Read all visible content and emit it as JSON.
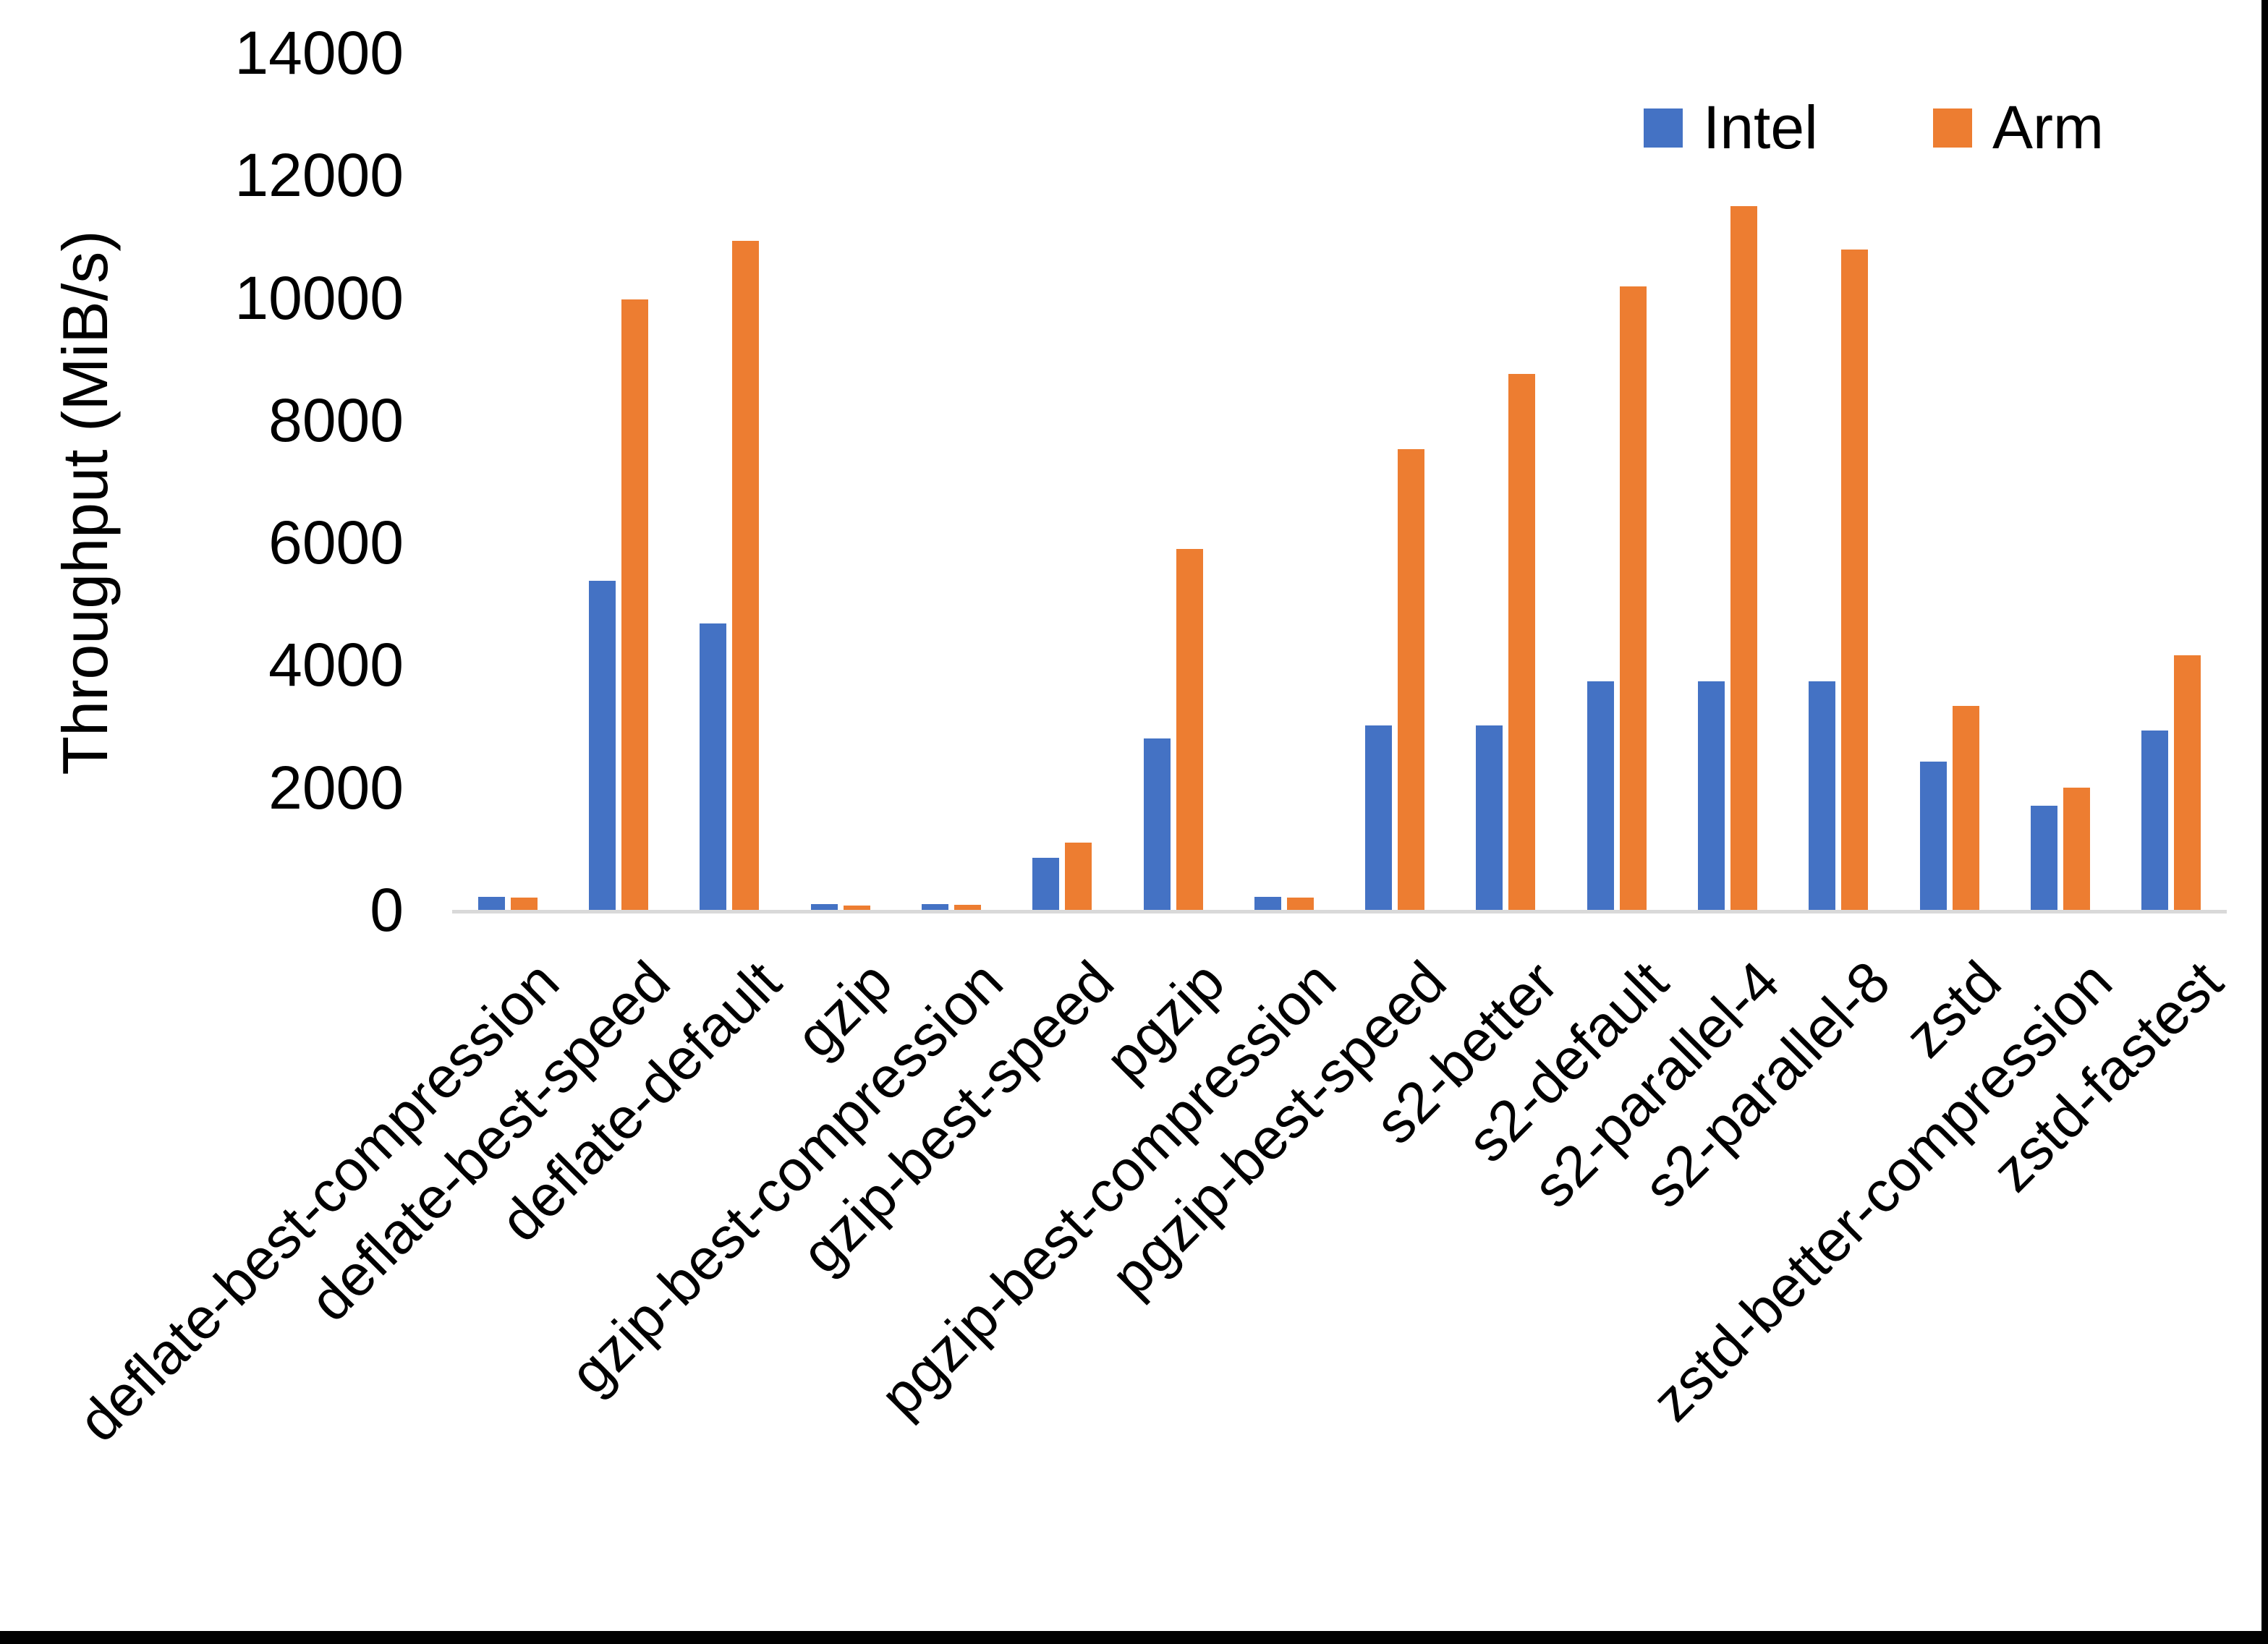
{
  "chart_data": {
    "type": "bar",
    "title": "",
    "xlabel": "",
    "ylabel": "Throughput (MiB/s)",
    "ylim": [
      0,
      14000
    ],
    "ytick_interval": 2000,
    "yticks": [
      "0",
      "2000",
      "4000",
      "6000",
      "8000",
      "10000",
      "12000",
      "14000"
    ],
    "grid": false,
    "legend_position": "top-right",
    "categories": [
      "deflate-best-compression",
      "deflate-best-speed",
      "deflate-default",
      "gzip",
      "gzip-best-compression",
      "gzip-best-speed",
      "pgzip",
      "pgzip-best-compression",
      "pgzip-best-speed",
      "s2-better",
      "s2-default",
      "s2-parallel-4",
      "s2-parallel-8",
      "zstd",
      "zstd-better-compression",
      "zstd-fastest"
    ],
    "series": [
      {
        "name": "Intel",
        "color": "#4472C4",
        "values": [
          240,
          5400,
          4700,
          120,
          120,
          880,
          2820,
          240,
          3040,
          3040,
          3760,
          3760,
          3760,
          2440,
          1720,
          2950
        ]
      },
      {
        "name": "Arm",
        "color": "#ED7D31",
        "values": [
          230,
          10000,
          10950,
          95,
          105,
          1120,
          5920,
          225,
          7550,
          8780,
          10210,
          11520,
          10810,
          3360,
          2020,
          4180
        ]
      }
    ]
  },
  "colors": {
    "axis_line": "#d9d9d9",
    "text": "#000000",
    "background": "#ffffff",
    "edge_border": "#000000"
  }
}
